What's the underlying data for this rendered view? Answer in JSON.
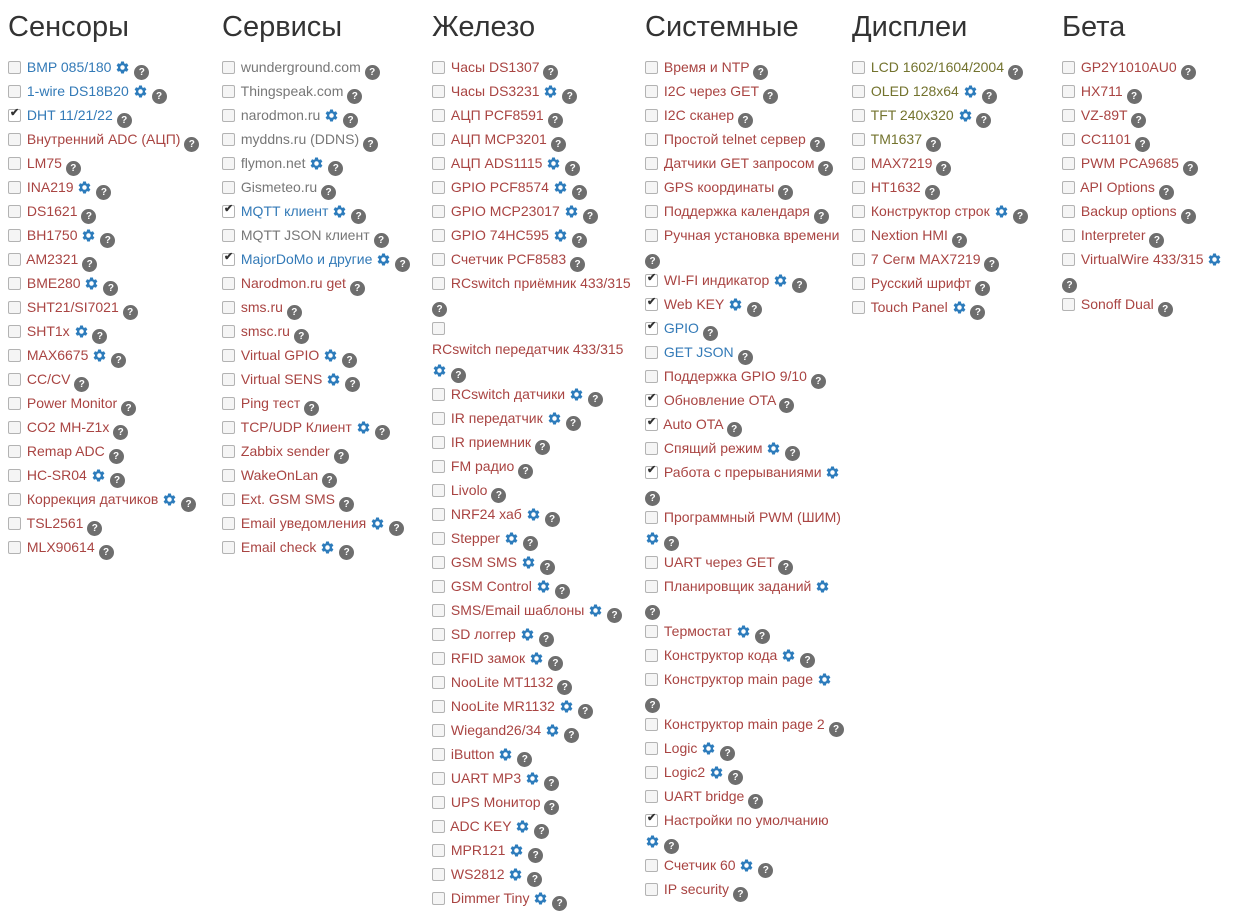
{
  "colors": {
    "blue": "#337ab7",
    "maroon": "#a94442",
    "gray": "#777777",
    "olive": "#73732e",
    "heading": "#333333",
    "gear_icon": "#2d7cbc",
    "help_icon_bg": "#6e6e6e"
  },
  "icons": {
    "gear": "settings-gear",
    "help": "question-mark-circle",
    "help_glyph": "?"
  },
  "sections": [
    {
      "id": "sensors",
      "title": "Сенсоры",
      "items": [
        {
          "label": "BMP 085/180",
          "color": "blue",
          "gear": true
        },
        {
          "label": "1-wire DS18B20",
          "color": "blue",
          "gear": true
        },
        {
          "label": "DHT 11/21/22",
          "color": "blue",
          "checked": true
        },
        {
          "label": "Внутренний ADC (АЦП)",
          "color": "maroon"
        },
        {
          "label": "LM75",
          "color": "maroon"
        },
        {
          "label": "INA219",
          "color": "maroon",
          "gear": true
        },
        {
          "label": "DS1621",
          "color": "maroon"
        },
        {
          "label": "BH1750",
          "color": "maroon",
          "gear": true
        },
        {
          "label": "AM2321",
          "color": "maroon"
        },
        {
          "label": "BME280",
          "color": "maroon",
          "gear": true
        },
        {
          "label": "SHT21/SI7021",
          "color": "maroon"
        },
        {
          "label": "SHT1x",
          "color": "maroon",
          "gear": true
        },
        {
          "label": "MAX6675",
          "color": "maroon",
          "gear": true
        },
        {
          "label": "CC/CV",
          "color": "maroon"
        },
        {
          "label": "Power Monitor",
          "color": "maroon"
        },
        {
          "label": "CO2 MH-Z1x",
          "color": "maroon"
        },
        {
          "label": "Remap ADC",
          "color": "maroon"
        },
        {
          "label": "HC-SR04",
          "color": "maroon",
          "gear": true
        },
        {
          "label": "Коррекция датчиков",
          "color": "maroon",
          "gear": true
        },
        {
          "label": "TSL2561",
          "color": "maroon"
        },
        {
          "label": "MLX90614",
          "color": "maroon"
        }
      ]
    },
    {
      "id": "services",
      "title": "Сервисы",
      "items": [
        {
          "label": "wunderground.com",
          "color": "gray"
        },
        {
          "label": "Thingspeak.com",
          "color": "gray"
        },
        {
          "label": "narodmon.ru",
          "color": "gray",
          "gear": true
        },
        {
          "label": "myddns.ru (DDNS)",
          "color": "gray"
        },
        {
          "label": "flymon.net",
          "color": "gray",
          "gear": true
        },
        {
          "label": "Gismeteo.ru",
          "color": "gray"
        },
        {
          "label": "MQTT клиент",
          "color": "blue",
          "gear": true,
          "checked": true
        },
        {
          "label": "MQTT JSON клиент",
          "color": "gray"
        },
        {
          "label": "MajorDoMo и другие",
          "color": "blue",
          "gear": true,
          "checked": true
        },
        {
          "label": "Narodmon.ru get",
          "color": "maroon"
        },
        {
          "label": "sms.ru",
          "color": "maroon"
        },
        {
          "label": "smsc.ru",
          "color": "maroon"
        },
        {
          "label": "Virtual GPIO",
          "color": "maroon",
          "gear": true
        },
        {
          "label": "Virtual SENS",
          "color": "maroon",
          "gear": true
        },
        {
          "label": "Ping тест",
          "color": "maroon"
        },
        {
          "label": "TCP/UDP Клиент",
          "color": "maroon",
          "gear": true
        },
        {
          "label": "Zabbix sender",
          "color": "maroon"
        },
        {
          "label": "WakeOnLan",
          "color": "maroon"
        },
        {
          "label": "Ext. GSM SMS",
          "color": "maroon"
        },
        {
          "label": "Email уведомления",
          "color": "maroon",
          "gear": true
        },
        {
          "label": "Email check",
          "color": "maroon",
          "gear": true
        }
      ]
    },
    {
      "id": "hardware",
      "title": "Железо",
      "items": [
        {
          "label": "Часы DS1307",
          "color": "maroon"
        },
        {
          "label": "Часы DS3231",
          "color": "maroon",
          "gear": true
        },
        {
          "label": "АЦП PCF8591",
          "color": "maroon"
        },
        {
          "label": "АЦП MCP3201",
          "color": "maroon"
        },
        {
          "label": "АЦП ADS1115",
          "color": "maroon",
          "gear": true
        },
        {
          "label": "GPIO PCF8574",
          "color": "maroon",
          "gear": true
        },
        {
          "label": "GPIO MCP23017",
          "color": "maroon",
          "gear": true
        },
        {
          "label": "GPIO 74HC595",
          "color": "maroon",
          "gear": true
        },
        {
          "label": "Счетчик PCF8583",
          "color": "maroon"
        },
        {
          "label": "RCswitch приёмник 433/315",
          "color": "maroon"
        },
        {
          "label": "RCswitch передатчик 433/315",
          "color": "maroon",
          "gear": true
        },
        {
          "label": "RCswitch датчики",
          "color": "maroon",
          "gear": true
        },
        {
          "label": "IR передатчик",
          "color": "maroon",
          "gear": true
        },
        {
          "label": "IR приемник",
          "color": "maroon"
        },
        {
          "label": "FM радио",
          "color": "maroon"
        },
        {
          "label": "Livolo",
          "color": "maroon"
        },
        {
          "label": "NRF24 хаб",
          "color": "maroon",
          "gear": true
        },
        {
          "label": "Stepper",
          "color": "maroon",
          "gear": true
        },
        {
          "label": "GSM SMS",
          "color": "maroon",
          "gear": true
        },
        {
          "label": "GSM Control",
          "color": "maroon",
          "gear": true
        },
        {
          "label": "SMS/Email шаблоны",
          "color": "maroon",
          "gear": true
        },
        {
          "label": "SD логгер",
          "color": "maroon",
          "gear": true
        },
        {
          "label": "RFID замок",
          "color": "maroon",
          "gear": true
        },
        {
          "label": "NooLite MT1132",
          "color": "maroon"
        },
        {
          "label": "NooLite MR1132",
          "color": "maroon",
          "gear": true
        },
        {
          "label": "Wiegand26/34",
          "color": "maroon",
          "gear": true
        },
        {
          "label": "iButton",
          "color": "maroon",
          "gear": true
        },
        {
          "label": "UART MP3",
          "color": "maroon",
          "gear": true
        },
        {
          "label": "UPS Монитор",
          "color": "maroon"
        },
        {
          "label": "ADC KEY",
          "color": "maroon",
          "gear": true
        },
        {
          "label": "MPR121",
          "color": "maroon",
          "gear": true
        },
        {
          "label": "WS2812",
          "color": "maroon",
          "gear": true
        },
        {
          "label": "Dimmer Tiny",
          "color": "maroon",
          "gear": true
        }
      ]
    },
    {
      "id": "system",
      "title": "Системные",
      "items": [
        {
          "label": "Время и NTP",
          "color": "maroon"
        },
        {
          "label": "I2C через GET",
          "color": "maroon"
        },
        {
          "label": "I2C сканер",
          "color": "maroon"
        },
        {
          "label": "Простой telnet сервер",
          "color": "maroon"
        },
        {
          "label": "Датчики GET запросом",
          "color": "maroon"
        },
        {
          "label": "GPS координаты",
          "color": "maroon"
        },
        {
          "label": "Поддержка календаря",
          "color": "maroon"
        },
        {
          "label": "Ручная установка времени",
          "color": "maroon"
        },
        {
          "label": "WI-FI индикатор",
          "color": "maroon",
          "gear": true,
          "checked": true
        },
        {
          "label": "Web KEY",
          "color": "maroon",
          "gear": true,
          "checked": true
        },
        {
          "label": "GPIO",
          "color": "blue",
          "checked": true
        },
        {
          "label": "GET JSON",
          "color": "blue"
        },
        {
          "label": "Поддержка GPIO 9/10",
          "color": "maroon"
        },
        {
          "label": "Обновление OTA",
          "color": "maroon",
          "checked": true
        },
        {
          "label": "Auto OTA",
          "color": "maroon",
          "checked": true
        },
        {
          "label": "Спящий режим",
          "color": "maroon",
          "gear": true
        },
        {
          "label": "Работа с прерываниями",
          "color": "maroon",
          "gear": true,
          "checked": true
        },
        {
          "label": "Программный PWM (ШИМ)",
          "color": "maroon",
          "gear": true
        },
        {
          "label": "UART через GET",
          "color": "maroon"
        },
        {
          "label": "Планировщик заданий",
          "color": "maroon",
          "gear": true
        },
        {
          "label": "Термостат",
          "color": "maroon",
          "gear": true
        },
        {
          "label": "Конструктор кода",
          "color": "maroon",
          "gear": true
        },
        {
          "label": "Конструктор main page",
          "color": "maroon",
          "gear": true
        },
        {
          "label": "Конструктор main page 2",
          "color": "maroon"
        },
        {
          "label": "Logic",
          "color": "maroon",
          "gear": true
        },
        {
          "label": "Logic2",
          "color": "maroon",
          "gear": true
        },
        {
          "label": "UART bridge",
          "color": "maroon"
        },
        {
          "label": "Настройки по умолчанию",
          "color": "maroon",
          "gear": true,
          "checked": true
        },
        {
          "label": "Счетчик 60",
          "color": "maroon",
          "gear": true
        },
        {
          "label": "IP security",
          "color": "maroon"
        }
      ]
    },
    {
      "id": "displays",
      "title": "Дисплеи",
      "items": [
        {
          "label": "LCD 1602/1604/2004",
          "color": "olive"
        },
        {
          "label": "OLED 128x64",
          "color": "olive",
          "gear": true
        },
        {
          "label": "TFT 240x320",
          "color": "olive",
          "gear": true
        },
        {
          "label": "TM1637",
          "color": "olive"
        },
        {
          "label": "MAX7219",
          "color": "maroon"
        },
        {
          "label": "HT1632",
          "color": "maroon"
        },
        {
          "label": "Конструктор строк",
          "color": "maroon",
          "gear": true
        },
        {
          "label": "Nextion HMI",
          "color": "maroon"
        },
        {
          "label": "7 Сегм MAX7219",
          "color": "maroon"
        },
        {
          "label": "Русский шрифт",
          "color": "maroon"
        },
        {
          "label": "Touch Panel",
          "color": "maroon",
          "gear": true
        }
      ]
    },
    {
      "id": "beta",
      "title": "Бета",
      "items": [
        {
          "label": "GP2Y1010AU0",
          "color": "maroon"
        },
        {
          "label": "HX711",
          "color": "maroon"
        },
        {
          "label": "VZ-89T",
          "color": "maroon"
        },
        {
          "label": "CC1101",
          "color": "maroon"
        },
        {
          "label": "PWM PCA9685",
          "color": "maroon"
        },
        {
          "label": "API Options",
          "color": "maroon"
        },
        {
          "label": "Backup options",
          "color": "maroon"
        },
        {
          "label": "Interpreter",
          "color": "maroon"
        },
        {
          "label": "VirtualWire 433/315",
          "color": "maroon",
          "gear": true
        },
        {
          "label": "Sonoff Dual",
          "color": "maroon"
        }
      ]
    }
  ]
}
